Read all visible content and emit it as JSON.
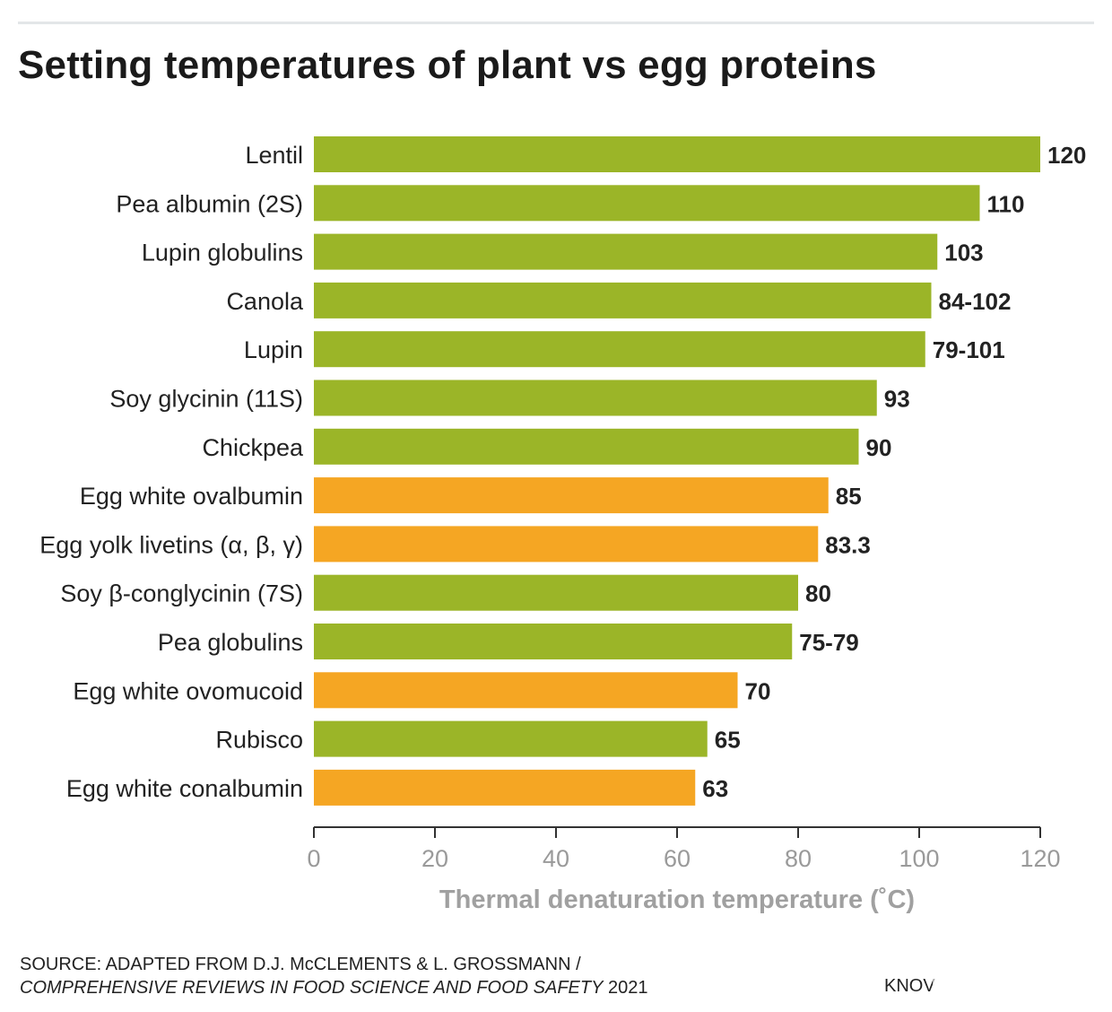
{
  "title": "Setting temperatures of plant vs egg proteins",
  "colors": {
    "plant": "#9bb528",
    "egg": "#f5a623",
    "axis": "#333333"
  },
  "chart_data": {
    "type": "bar",
    "orientation": "horizontal",
    "categories": [
      "Lentil",
      "Pea albumin (2S)",
      "Lupin globulins",
      "Canola",
      "Lupin",
      "Soy glycinin (11S)",
      "Chickpea",
      "Egg white ovalbumin",
      "Egg yolk livetins (α, β, γ)",
      "Soy β-conglycinin (7S)",
      "Pea globulins",
      "Egg white ovomucoid",
      "Rubisco",
      "Egg white conalbumin"
    ],
    "values": [
      120,
      110,
      103,
      102,
      101,
      93,
      90,
      85,
      83.3,
      80,
      79,
      70,
      65,
      63
    ],
    "value_labels": [
      "120",
      "110",
      "103",
      "84-102",
      "79-101",
      "93",
      "90",
      "85",
      "83.3",
      "80",
      "75-79",
      "70",
      "65",
      "63"
    ],
    "groups": [
      "plant",
      "plant",
      "plant",
      "plant",
      "plant",
      "plant",
      "plant",
      "egg",
      "egg",
      "plant",
      "plant",
      "egg",
      "plant",
      "egg"
    ],
    "xlabel": "Thermal denaturation temperature (˚C)",
    "xlim": [
      0,
      120
    ],
    "xticks": [
      "0",
      "20",
      "40",
      "60",
      "80",
      "100",
      "120"
    ],
    "grid": false
  },
  "source": {
    "line1": "SOURCE: ADAPTED FROM D.J. McCLEMENTS & L. GROSSMANN /",
    "journal": "COMPREHENSIVE REVIEWS IN FOOD SCIENCE AND FOOD SAFETY",
    "year": " 2021"
  },
  "brand": "KNOV"
}
